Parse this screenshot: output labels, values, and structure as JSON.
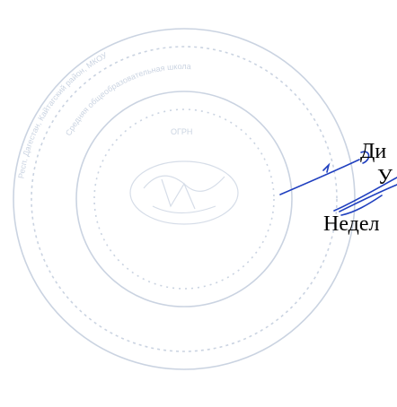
{
  "document": {
    "lines": [
      "Ди",
      "У",
      "Недел"
    ]
  },
  "stamp": {
    "icon": "round-seal-icon",
    "color": "#9fb0c9",
    "ring_texts": [
      "Респ. Дагестан, Кайтагский район, МКОУ",
      "Средняя общеобразовательная школа",
      "ОГРН"
    ]
  },
  "signature": {
    "icon": "signature-icon",
    "color": "#1f3fbf"
  }
}
